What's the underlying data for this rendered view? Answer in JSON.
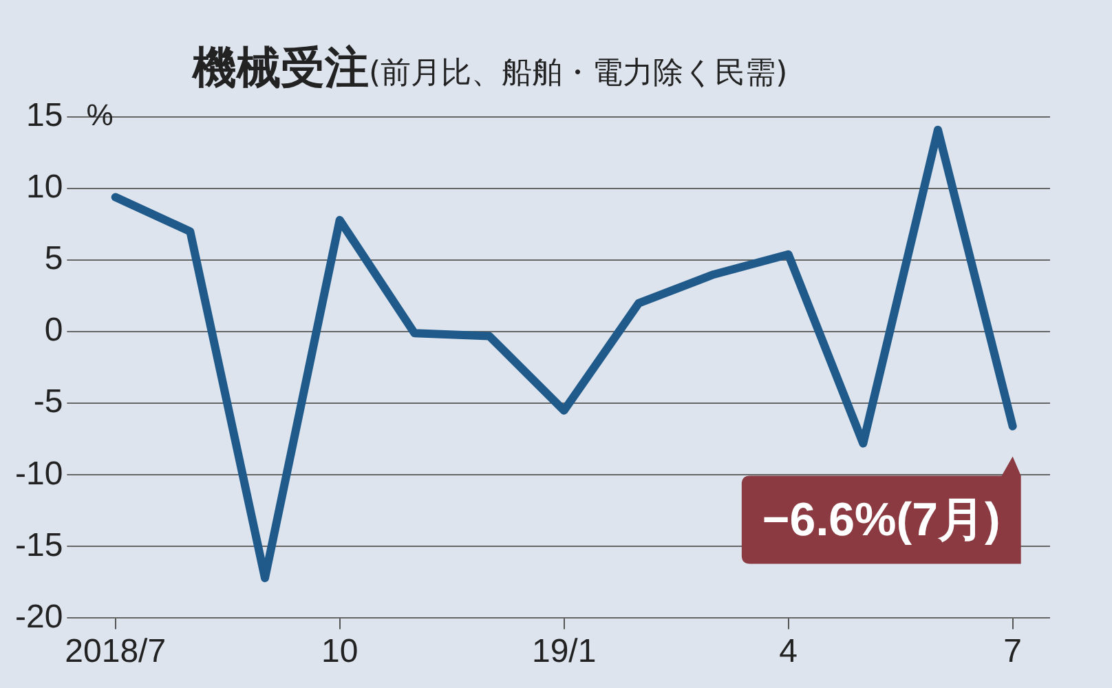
{
  "chart_data": {
    "type": "line",
    "title": "機械受注",
    "subtitle": "(前月比、船舶・電力除く民需)",
    "ylabel": "%",
    "categories": [
      "2018/7",
      null,
      null,
      "10",
      null,
      null,
      "19/1",
      null,
      null,
      "4",
      null,
      null,
      "7"
    ],
    "series": [
      {
        "color": "#1f5a8a",
        "values": [
          9.4,
          7.0,
          -17.2,
          7.8,
          -0.1,
          -0.3,
          -5.5,
          2.0,
          4.0,
          5.4,
          -7.8,
          14.1,
          -6.6
        ]
      }
    ],
    "ylim": [
      -20,
      15
    ],
    "yticks": [
      -20,
      -15,
      -10,
      -5,
      0,
      5,
      10,
      15
    ],
    "grid": "y",
    "legend": false,
    "marker": "none",
    "line_style": "solid",
    "annotations": [
      {
        "text": "−6.6%(7月)",
        "x": "7",
        "y": -6.6
      }
    ]
  }
}
